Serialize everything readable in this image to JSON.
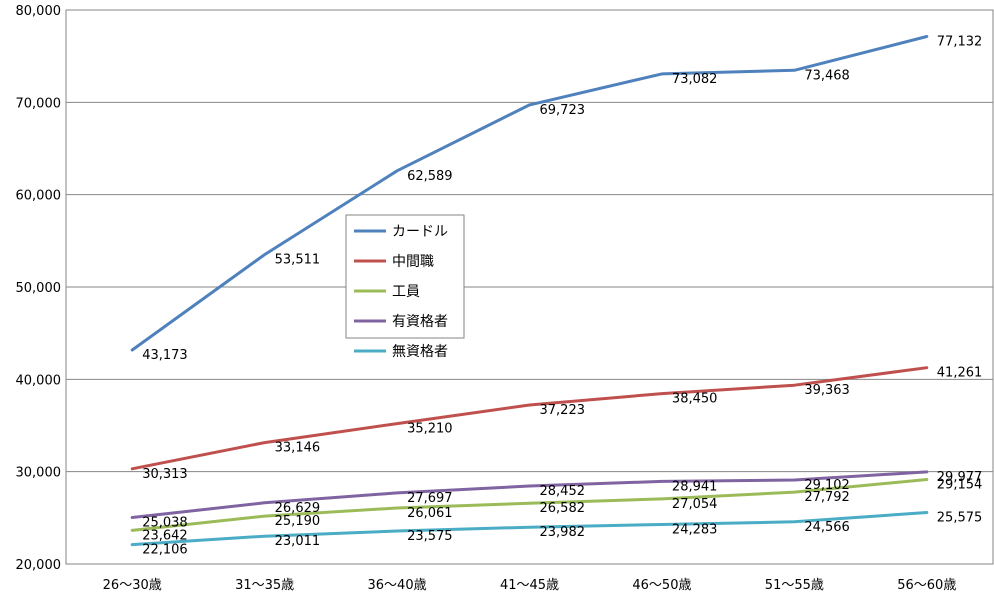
{
  "chart_data": {
    "type": "line",
    "categories": [
      "26～30歳",
      "31～35歳",
      "36～40歳",
      "41～45歳",
      "46～50歳",
      "51～55歳",
      "56～60歳"
    ],
    "ylim": [
      20000,
      80000
    ],
    "yticks": [
      20000,
      30000,
      40000,
      50000,
      60000,
      70000,
      80000
    ],
    "ytick_labels": [
      "20,000",
      "30,000",
      "40,000",
      "50,000",
      "60,000",
      "70,000",
      "80,000"
    ],
    "grid": "horizontal",
    "legend_position": "center-left",
    "title": "",
    "xlabel": "",
    "ylabel": "",
    "series": [
      {
        "name": "カードル",
        "color": "#4F81BD",
        "values": [
          43173,
          53511,
          62589,
          69723,
          73082,
          73468,
          77132
        ],
        "labels": [
          "43,173",
          "53,511",
          "62,589",
          "69,723",
          "73,082",
          "73,468",
          "77,132"
        ]
      },
      {
        "name": "中間職",
        "color": "#C0504D",
        "values": [
          30313,
          33146,
          35210,
          37223,
          38450,
          39363,
          41261
        ],
        "labels": [
          "30,313",
          "33,146",
          "35,210",
          "37,223",
          "38,450",
          "39,363",
          "41,261"
        ]
      },
      {
        "name": "工員",
        "color": "#9BBB59",
        "values": [
          23642,
          25190,
          26061,
          26582,
          27054,
          27792,
          29154
        ],
        "labels": [
          "23,642",
          "25,190",
          "26,061",
          "26,582",
          "27,054",
          "27,792",
          "29,154"
        ]
      },
      {
        "name": "有資格者",
        "color": "#8064A2",
        "values": [
          25038,
          26629,
          27697,
          28452,
          28941,
          29102,
          29977
        ],
        "labels": [
          "25,038",
          "26,629",
          "27,697",
          "28,452",
          "28,941",
          "29,102",
          "29,977"
        ]
      },
      {
        "name": "無資格者",
        "color": "#4BACC6",
        "values": [
          22106,
          23011,
          23575,
          23982,
          24283,
          24566,
          25575
        ],
        "labels": [
          "22,106",
          "23,011",
          "23,575",
          "23,982",
          "24,283",
          "24,566",
          "25,575"
        ]
      }
    ]
  }
}
